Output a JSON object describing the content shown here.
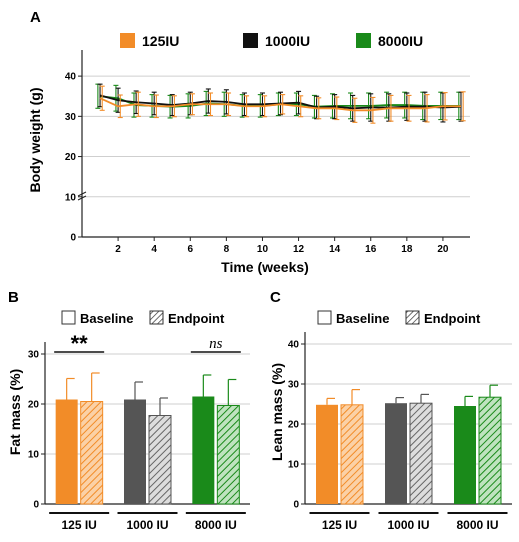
{
  "chart_data": [
    {
      "id": "A",
      "type": "line",
      "panel_label": "A",
      "xlabel": "Time (weeks)",
      "ylabel": "Body weight (g)",
      "xlim": [
        0,
        21.5
      ],
      "ylim": [
        0,
        45
      ],
      "xticks": [
        "2",
        "4",
        "6",
        "8",
        "10",
        "12",
        "14",
        "16",
        "18",
        "20"
      ],
      "yticks": [
        "0",
        "10",
        "20",
        "30",
        "40"
      ],
      "grid": true,
      "legend_position": "top",
      "x": [
        1,
        2,
        3,
        4,
        5,
        6,
        7,
        8,
        9,
        10,
        11,
        12,
        13,
        14,
        15,
        16,
        17,
        18,
        19,
        20,
        21
      ],
      "series": [
        {
          "name": "125IU",
          "color": "#f28c28",
          "values": [
            34.5,
            32.5,
            33.0,
            32.5,
            32.5,
            33.0,
            33.0,
            33.0,
            32.5,
            32.5,
            33.0,
            32.5,
            32.0,
            32.0,
            31.5,
            31.5,
            32.0,
            32.0,
            32.0,
            32.5,
            32.5
          ],
          "errors": [
            3.0,
            2.8,
            3.0,
            2.8,
            2.6,
            2.6,
            2.8,
            2.8,
            2.6,
            2.6,
            2.4,
            2.6,
            2.6,
            2.8,
            3.0,
            3.2,
            3.2,
            3.2,
            3.4,
            3.4,
            3.6
          ]
        },
        {
          "name": "1000IU",
          "color": "#111111",
          "values": [
            35.2,
            34.0,
            33.5,
            33.2,
            32.8,
            33.2,
            33.8,
            33.6,
            33.0,
            33.0,
            33.2,
            33.4,
            32.2,
            32.4,
            32.0,
            32.2,
            32.2,
            32.4,
            32.4,
            32.2,
            32.4
          ],
          "errors": [
            2.8,
            3.0,
            2.8,
            2.8,
            2.6,
            2.8,
            3.0,
            3.0,
            2.8,
            2.8,
            2.8,
            2.8,
            2.8,
            3.0,
            3.2,
            3.4,
            3.4,
            3.4,
            3.6,
            3.6,
            3.6
          ]
        },
        {
          "name": "8000IU",
          "color": "#1a8a1a",
          "values": [
            35.0,
            34.5,
            32.8,
            32.6,
            32.4,
            32.6,
            33.2,
            33.0,
            32.6,
            32.6,
            33.0,
            33.0,
            32.4,
            32.6,
            32.6,
            32.6,
            32.8,
            32.8,
            32.6,
            32.6,
            32.6
          ],
          "errors": [
            3.0,
            3.2,
            3.0,
            2.8,
            2.8,
            3.0,
            3.0,
            3.0,
            2.8,
            2.8,
            2.8,
            2.8,
            2.8,
            3.0,
            3.2,
            3.2,
            3.2,
            3.2,
            3.4,
            3.4,
            3.4
          ]
        }
      ]
    },
    {
      "id": "B",
      "type": "bar",
      "panel_label": "B",
      "ylabel": "Fat mass (%)",
      "ylim": [
        0,
        30
      ],
      "yticks": [
        "0",
        "10",
        "20",
        "30"
      ],
      "grid": true,
      "categories": [
        "125 IU",
        "1000 IU",
        "8000 IU"
      ],
      "category_colors": [
        "#f28c28",
        "#555555",
        "#1a8a1a"
      ],
      "legend": {
        "baseline": "Baseline",
        "endpoint": "Endpoint"
      },
      "series": [
        {
          "name": "Baseline",
          "pattern": "solid",
          "values": [
            20.9,
            20.9,
            21.5
          ],
          "errors": [
            4.2,
            3.5,
            4.3
          ]
        },
        {
          "name": "Endpoint",
          "pattern": "hatched",
          "values": [
            20.5,
            17.7,
            19.7
          ],
          "errors": [
            5.7,
            3.5,
            5.2
          ]
        }
      ],
      "annotations": [
        {
          "text": "**",
          "category": "125 IU"
        },
        {
          "text": "ns",
          "category": "8000 IU"
        }
      ]
    },
    {
      "id": "C",
      "type": "bar",
      "panel_label": "C",
      "ylabel": "Lean mass (%)",
      "ylim": [
        0,
        40
      ],
      "yticks": [
        "0",
        "10",
        "20",
        "30",
        "40"
      ],
      "grid": true,
      "categories": [
        "125 IU",
        "1000 IU",
        "8000 IU"
      ],
      "category_colors": [
        "#f28c28",
        "#555555",
        "#1a8a1a"
      ],
      "legend": {
        "baseline": "Baseline",
        "endpoint": "Endpoint"
      },
      "series": [
        {
          "name": "Baseline",
          "pattern": "solid",
          "values": [
            24.8,
            25.2,
            24.5
          ],
          "errors": [
            1.6,
            1.4,
            2.4
          ]
        },
        {
          "name": "Endpoint",
          "pattern": "hatched",
          "values": [
            24.8,
            25.2,
            26.7
          ],
          "errors": [
            3.8,
            2.2,
            3.0
          ]
        }
      ]
    }
  ]
}
